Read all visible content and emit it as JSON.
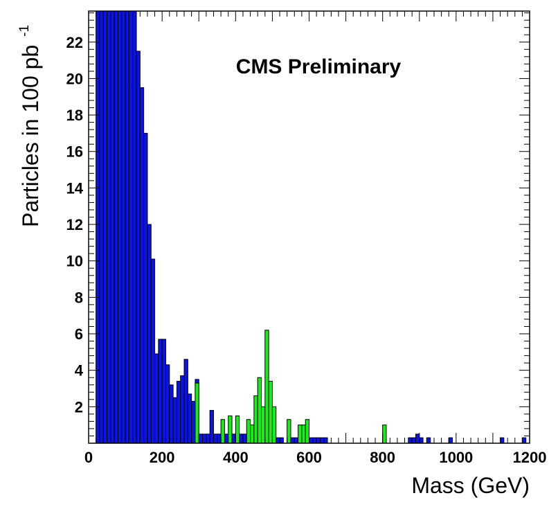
{
  "chart_data": {
    "type": "bar",
    "title": "CMS Preliminary",
    "xlabel": "Mass (GeV)",
    "ylabel_main": "Particles in 100 pb",
    "ylabel_superscript": "-1",
    "xlim": [
      0,
      1200
    ],
    "ylim": [
      0,
      23.7
    ],
    "bin_width": 10,
    "x_ticks": [
      0,
      200,
      400,
      600,
      800,
      1000,
      1200
    ],
    "x_tick_labels": [
      "0",
      "200",
      "400",
      "600",
      "800",
      "1000",
      "1200"
    ],
    "y_ticks": [
      2,
      4,
      6,
      8,
      10,
      12,
      14,
      16,
      18,
      20,
      22
    ],
    "y_tick_labels": [
      "2",
      "4",
      "6",
      "8",
      "10",
      "12",
      "14",
      "16",
      "18",
      "20",
      "22"
    ],
    "colors": {
      "blue": "#0a14e6",
      "green": "#14f014",
      "frame": "#000000"
    },
    "series": [
      {
        "color_key": "blue",
        "bin_starts": [
          20,
          30,
          40,
          50,
          60,
          70,
          80,
          90,
          100,
          110,
          120,
          130,
          140,
          150,
          160,
          170,
          180,
          190,
          200,
          210,
          220,
          230,
          240,
          250,
          260,
          270,
          280,
          290,
          300,
          310,
          320,
          330,
          340,
          350,
          360,
          370,
          380,
          390,
          400,
          410,
          420,
          430,
          440,
          450,
          460,
          470,
          480,
          490,
          500,
          510,
          520,
          530,
          540,
          550,
          560,
          570,
          580,
          590,
          600,
          610,
          620,
          630,
          640,
          800,
          870,
          880,
          890,
          900,
          910,
          920,
          970,
          980,
          1120,
          1180
        ],
        "values": [
          23.7,
          23.7,
          23.7,
          23.7,
          23.7,
          23.7,
          23.7,
          23.7,
          23.7,
          23.7,
          23.7,
          21.5,
          19.5,
          17,
          12,
          10.1,
          4.9,
          5.7,
          5.7,
          4.3,
          3.2,
          2.5,
          3.4,
          3.7,
          4.6,
          2.7,
          2.3,
          3.5,
          0.5,
          0.5,
          0.5,
          1.8,
          0.5,
          0.5,
          0.5,
          0.5,
          0.5,
          0.5,
          0.5,
          0.5,
          0.5,
          0,
          0,
          0,
          0,
          0,
          0,
          0,
          0,
          0.3,
          0.3,
          0,
          0.3,
          0.3,
          0.3,
          0.3,
          0.3,
          0.3,
          0.3,
          0.3,
          0.3,
          0.3,
          0.3,
          0.3,
          0.3,
          0.3,
          0.5,
          0.3,
          0,
          0.3,
          0,
          0.3,
          0.3,
          0.3
        ]
      },
      {
        "color_key": "green",
        "bin_starts": [
          290,
          360,
          380,
          400,
          430,
          440,
          450,
          460,
          470,
          480,
          490,
          500,
          540,
          570,
          580,
          590,
          800
        ],
        "values": [
          3.3,
          1.3,
          1.5,
          1.5,
          1.3,
          1,
          2.6,
          3.6,
          2,
          6.2,
          3.4,
          2,
          1.3,
          1,
          1,
          1.3,
          1
        ]
      }
    ]
  }
}
